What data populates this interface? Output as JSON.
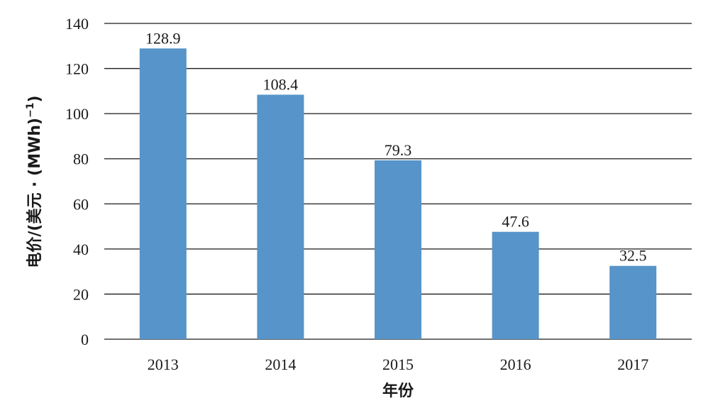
{
  "chart_data": {
    "type": "bar",
    "title": "",
    "xlabel": "年份",
    "ylabel": "电价/(美元 · (MWh)",
    "ylabel_superscript": "−1",
    "ylabel_close": ")",
    "categories": [
      "2013",
      "2014",
      "2015",
      "2016",
      "2017"
    ],
    "values": [
      128.9,
      108.4,
      79.3,
      47.6,
      32.5
    ],
    "value_labels": [
      "128.9",
      "108.4",
      "79.3",
      "47.6",
      "32.5"
    ],
    "ylim": [
      0,
      140
    ],
    "yticks": [
      0,
      20,
      40,
      60,
      80,
      100,
      120,
      140
    ],
    "grid": true,
    "legend": "none",
    "bar_color": "#5694c9"
  }
}
